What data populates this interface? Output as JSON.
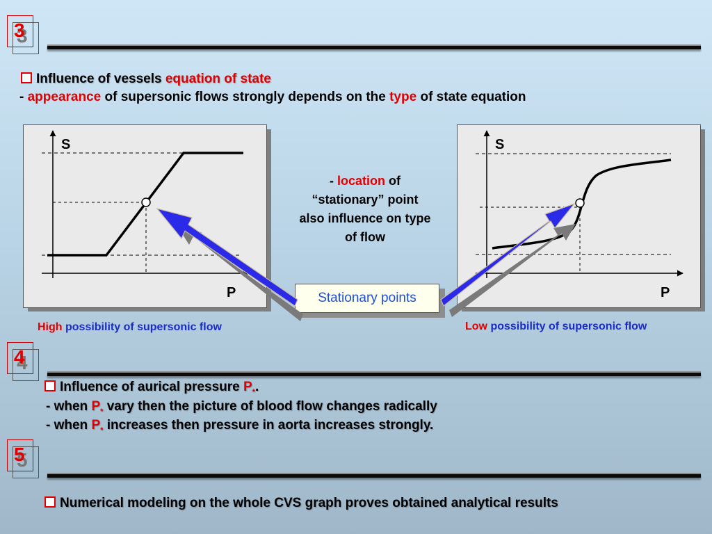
{
  "section3": {
    "number": "3",
    "title_prefix": "Influence of vessels ",
    "title_highlight": "equation of state",
    "line_dash": "- ",
    "line_highlight1": "appearance",
    "line_mid": " of supersonic flows strongly depends on the ",
    "line_highlight2": "type",
    "line_end": " of state equation"
  },
  "left_graph": {
    "y_label": "S",
    "x_label": "P"
  },
  "right_graph": {
    "y_label": "S",
    "x_label": "P"
  },
  "middle_note": {
    "dash": "- ",
    "highlight": "location",
    "after_highlight": " of",
    "line2": "“stationary” point",
    "line3": "also influence on type",
    "line4": "of flow"
  },
  "stationary_label": "Stationary points",
  "left_caption": {
    "highlight": "High",
    "rest": " possibility of supersonic flow"
  },
  "right_caption": {
    "highlight": "Low",
    "rest": " possibility of supersonic flow"
  },
  "section4": {
    "number": "4",
    "title": "Influence of aurical pressure ",
    "p_symbol": "P",
    "sub_symbol": "*",
    "title_end": ".",
    "line1_start": "- when ",
    "line1_end": " vary then the picture of blood flow changes radically",
    "line2_start": "- when ",
    "line2_end": " increases then pressure in aorta increases strongly."
  },
  "section5": {
    "number": "5",
    "text": "Numerical modeling on the whole CVS graph proves obtained analytical results"
  },
  "colors": {
    "accent_red": "#e00000",
    "caption_blue": "#1a2cc8",
    "arrow_blue": "#2a2ae8",
    "stationary_text": "#1d4fd8"
  }
}
